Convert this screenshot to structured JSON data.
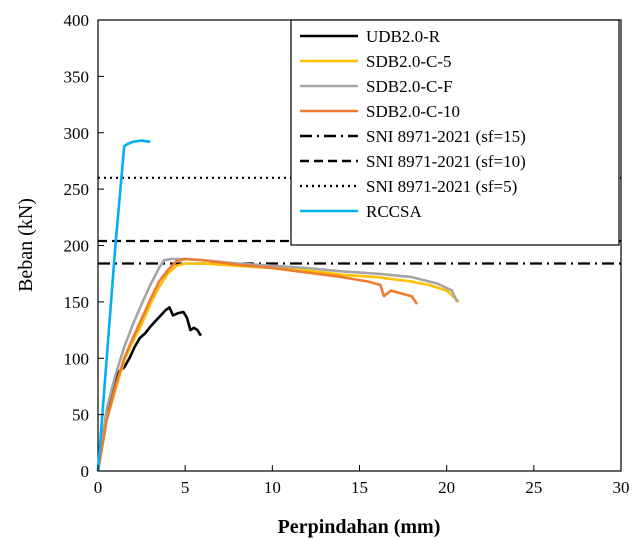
{
  "chart_data": {
    "type": "line",
    "title": "",
    "xlabel": "Perpindahan (mm)",
    "ylabel": "Beban (kN)",
    "xlim": [
      0,
      30
    ],
    "ylim": [
      0,
      400
    ],
    "xticks": [
      0,
      5,
      10,
      15,
      20,
      25,
      30
    ],
    "yticks": [
      0,
      50,
      100,
      150,
      200,
      250,
      300,
      350,
      400
    ],
    "grid": false,
    "legend_position": "top-right",
    "series": [
      {
        "name": "UDB2.0-R",
        "color": "#000000",
        "dash": "solid",
        "x": [
          0,
          0.3,
          0.6,
          0.9,
          1.2,
          1.5,
          1.8,
          2.1,
          2.4,
          2.7,
          3.0,
          3.3,
          3.6,
          3.9,
          4.1,
          4.3,
          4.6,
          4.9,
          5.1,
          5.3,
          5.5,
          5.7,
          5.9
        ],
        "y": [
          0,
          35,
          55,
          75,
          88,
          92,
          100,
          110,
          118,
          122,
          128,
          133,
          138,
          143,
          145,
          138,
          140,
          141,
          136,
          125,
          127,
          125,
          120
        ]
      },
      {
        "name": "SDB2.0-C-5",
        "color": "#ffc000",
        "dash": "solid",
        "x": [
          0,
          0.5,
          1.0,
          1.5,
          2.0,
          2.5,
          3.0,
          3.5,
          4.0,
          4.5,
          5.0,
          6,
          8,
          10,
          12,
          14,
          16,
          18,
          19,
          20,
          20.5,
          20.7
        ],
        "y": [
          0,
          45,
          72,
          98,
          115,
          130,
          148,
          163,
          175,
          182,
          184,
          184,
          182,
          180,
          178,
          174,
          172,
          168,
          165,
          160,
          153,
          150
        ]
      },
      {
        "name": "SDB2.0-C-F",
        "color": "#a5a5a5",
        "dash": "solid",
        "x": [
          0,
          0.5,
          1.0,
          1.5,
          2.0,
          2.5,
          3.0,
          3.5,
          3.8,
          4.2,
          5,
          6,
          8,
          10,
          12,
          14,
          16,
          18,
          19.5,
          20.3,
          20.6
        ],
        "y": [
          0,
          55,
          85,
          110,
          130,
          148,
          165,
          180,
          187,
          188,
          188,
          187,
          184,
          182,
          180,
          177,
          175,
          172,
          166,
          160,
          150
        ]
      },
      {
        "name": "SDB2.0-C-10",
        "color": "#ed7d31",
        "dash": "solid",
        "x": [
          0,
          0.5,
          1.0,
          1.5,
          2.0,
          2.5,
          3.0,
          3.5,
          4.0,
          4.5,
          5.0,
          6,
          8,
          10,
          12,
          14,
          15.5,
          16.2,
          16.4,
          16.8,
          17.5,
          18,
          18.3
        ],
        "y": [
          0,
          45,
          75,
          100,
          118,
          135,
          152,
          168,
          178,
          186,
          188,
          187,
          183,
          180,
          176,
          172,
          168,
          165,
          155,
          160,
          157,
          155,
          148
        ]
      },
      {
        "name": "SNI 8971-2021 (sf=15)",
        "color": "#000000",
        "dash": "dashdot",
        "x": [
          0,
          30
        ],
        "y": [
          184,
          184
        ]
      },
      {
        "name": "SNI 8971-2021 (sf=10)",
        "color": "#000000",
        "dash": "dashed",
        "x": [
          0,
          30
        ],
        "y": [
          204,
          204
        ]
      },
      {
        "name": "SNI 8971-2021 (sf=5)",
        "color": "#000000",
        "dash": "dotted",
        "x": [
          0,
          30
        ],
        "y": [
          260,
          260
        ]
      },
      {
        "name": "RCCSA",
        "color": "#00b0f0",
        "dash": "solid",
        "x": [
          0,
          0.5,
          1.0,
          1.5,
          1.7,
          2.0,
          2.5,
          3.0
        ],
        "y": [
          0,
          100,
          200,
          288,
          290,
          292,
          293,
          292
        ]
      }
    ]
  }
}
